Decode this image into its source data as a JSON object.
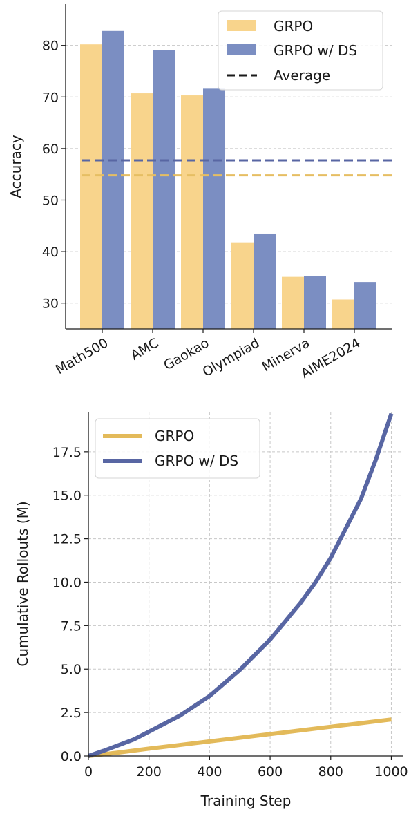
{
  "chart_data": [
    {
      "type": "bar",
      "categories": [
        "Math500",
        "AMC",
        "Gaokao",
        "Olympiad",
        "Minerva",
        "AIME2024"
      ],
      "series": [
        {
          "name": "GRPO",
          "values": [
            80.2,
            70.7,
            70.3,
            41.8,
            35.1,
            30.7
          ],
          "average": 54.8,
          "color": "#F8D48C"
        },
        {
          "name": "GRPO w/ DS",
          "values": [
            82.8,
            79.1,
            71.6,
            43.5,
            35.3,
            34.1
          ],
          "average": 57.7,
          "color": "#7B8EC2"
        }
      ],
      "average_colors": [
        "#E6BE63",
        "#5866A3"
      ],
      "legend": [
        "GRPO",
        "GRPO w/ DS",
        "Average"
      ],
      "legend_position": "top-right",
      "ylabel": "Accuracy",
      "xlabel": "",
      "ylim": [
        25,
        88
      ],
      "yticks": [
        30,
        40,
        50,
        60,
        70,
        80
      ],
      "ytick_labels": [
        "30",
        "40",
        "50",
        "60",
        "70",
        "80"
      ],
      "grid": "y-dashed"
    },
    {
      "type": "line",
      "series": [
        {
          "name": "GRPO",
          "color": "#E3BA5A",
          "x": [
            0,
            100,
            200,
            300,
            400,
            500,
            600,
            700,
            800,
            900,
            1000
          ],
          "y": [
            0.0,
            0.2,
            0.42,
            0.63,
            0.84,
            1.05,
            1.26,
            1.47,
            1.68,
            1.89,
            2.1
          ]
        },
        {
          "name": "GRPO w/ DS",
          "color": "#5866A3",
          "x": [
            0,
            50,
            150,
            200,
            300,
            400,
            500,
            600,
            700,
            750,
            800,
            900,
            950,
            1000
          ],
          "y": [
            0.0,
            0.3,
            0.95,
            1.4,
            2.3,
            3.45,
            4.95,
            6.7,
            8.8,
            10.0,
            11.4,
            14.8,
            17.1,
            19.7
          ]
        }
      ],
      "legend": [
        "GRPO",
        "GRPO w/ DS"
      ],
      "legend_position": "top-left",
      "xlabel": "Training Step",
      "ylabel": "Cumulative Rollouts (M)",
      "xlim": [
        0,
        1040
      ],
      "ylim": [
        0,
        19.8
      ],
      "xticks": [
        0,
        200,
        400,
        600,
        800,
        1000
      ],
      "xtick_labels": [
        "0",
        "200",
        "400",
        "600",
        "800",
        "1000"
      ],
      "yticks": [
        0,
        2.5,
        5,
        7.5,
        10,
        12.5,
        15,
        17.5
      ],
      "ytick_labels": [
        "0.0",
        "2.5",
        "5.0",
        "7.5",
        "10.0",
        "12.5",
        "15.0",
        "17.5"
      ],
      "grid": "both-dashed"
    }
  ]
}
